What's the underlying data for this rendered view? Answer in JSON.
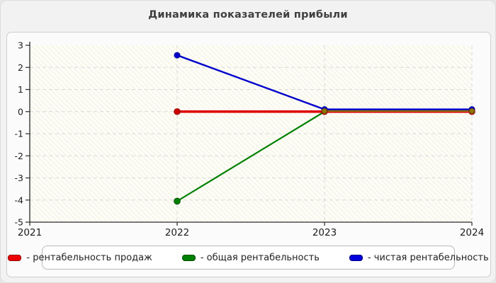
{
  "title": "Динамика показателей прибыли",
  "chart_data": {
    "type": "line",
    "title": "Динамика показателей прибыли",
    "xlabel": "",
    "ylabel": "",
    "x_axis_ticks": [
      2021,
      2022,
      2023,
      2024
    ],
    "ylim": [
      -5,
      3
    ],
    "y_tick_step": 1,
    "grid": "dashed",
    "legend_position": "bottom",
    "x": [
      2022,
      2023,
      2024
    ],
    "series": [
      {
        "name": "рентабельность продаж",
        "color": "#dd0000",
        "marker_color": "#cc0000",
        "marker_edge": "#991111",
        "values": [
          0,
          0,
          0
        ]
      },
      {
        "name": "общая рентабельность",
        "color": "#008000",
        "marker_color": "#008000",
        "marker_edge": "#005500",
        "values": [
          -4.05,
          0,
          0
        ]
      },
      {
        "name": "чистая рентабельность",
        "color": "#0000cc",
        "marker_color": "#0000cc",
        "marker_edge": "#000099",
        "values": [
          2.55,
          0.1,
          0.1
        ]
      }
    ],
    "overlap_color": "#8d7800",
    "overlap_marker_edge": "#6b5a00",
    "plot_bg": "#f7f6e8",
    "grid_color": "#d9d9d9",
    "axis_color": "#2a2a2a"
  },
  "legend": {
    "items": [
      {
        "label": "- рентабельность продаж",
        "color": "#ee0000"
      },
      {
        "label": "- общая рентабельность",
        "color": "#008000"
      },
      {
        "label": "- чистая рентабельность",
        "color": "#0000dd"
      }
    ]
  }
}
